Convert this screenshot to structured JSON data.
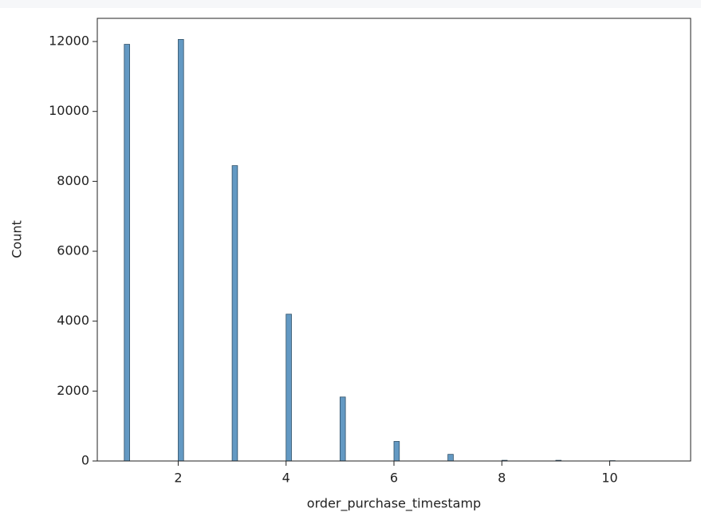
{
  "chart_data": {
    "type": "histogram",
    "x_label": "order_purchase_timestamp",
    "y_label": "Count",
    "bins": [
      1,
      1.1,
      2,
      2.1,
      3,
      3.1,
      4,
      4.1,
      5,
      5.1,
      6,
      6.1,
      7,
      7.1,
      8,
      8.1,
      9,
      9.1,
      10,
      10.1,
      11
    ],
    "values": [
      11920,
      0,
      12060,
      0,
      8450,
      0,
      4200,
      0,
      1830,
      0,
      560,
      0,
      190,
      0,
      20,
      0,
      20,
      0,
      10,
      0
    ],
    "color": "#5b93c0",
    "xlim": [
      0.5,
      11.5
    ],
    "xticks": [
      2,
      4,
      6,
      8,
      10
    ],
    "ylim": [
      0,
      12663
    ],
    "yticks": [
      0,
      2000,
      4000,
      6000,
      8000,
      10000,
      12000
    ],
    "grid": false
  }
}
